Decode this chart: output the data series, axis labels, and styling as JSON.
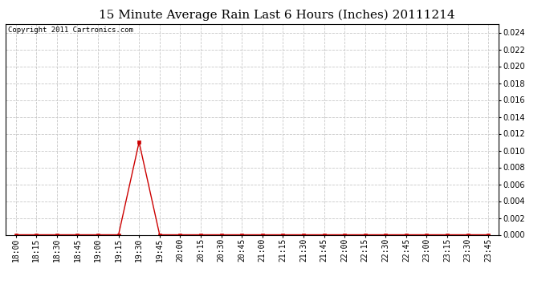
{
  "title": "15 Minute Average Rain Last 6 Hours (Inches) 20111214",
  "copyright_text": "Copyright 2011 Cartronics.com",
  "x_labels": [
    "18:00",
    "18:15",
    "18:30",
    "18:45",
    "19:00",
    "19:15",
    "19:30",
    "19:45",
    "20:00",
    "20:15",
    "20:30",
    "20:45",
    "21:00",
    "21:15",
    "21:30",
    "21:45",
    "22:00",
    "22:15",
    "22:30",
    "22:45",
    "23:00",
    "23:15",
    "23:30",
    "23:45"
  ],
  "y_values": [
    0.0,
    0.0,
    0.0,
    0.0,
    0.0,
    0.0,
    0.011,
    0.0,
    0.0,
    0.0,
    0.0,
    0.0,
    0.0,
    0.0,
    0.0,
    0.0,
    0.0,
    0.0,
    0.0,
    0.0,
    0.0,
    0.0,
    0.0,
    0.0
  ],
  "ylim": [
    0.0,
    0.025
  ],
  "yticks": [
    0.0,
    0.002,
    0.004,
    0.006,
    0.008,
    0.01,
    0.012,
    0.014,
    0.016,
    0.018,
    0.02,
    0.022,
    0.024
  ],
  "line_color": "#cc0000",
  "marker": "s",
  "marker_size": 2.5,
  "bg_color": "#ffffff",
  "grid_color": "#c8c8c8",
  "title_fontsize": 11,
  "copyright_fontsize": 6.5,
  "tick_fontsize": 7,
  "border_color": "#000000"
}
